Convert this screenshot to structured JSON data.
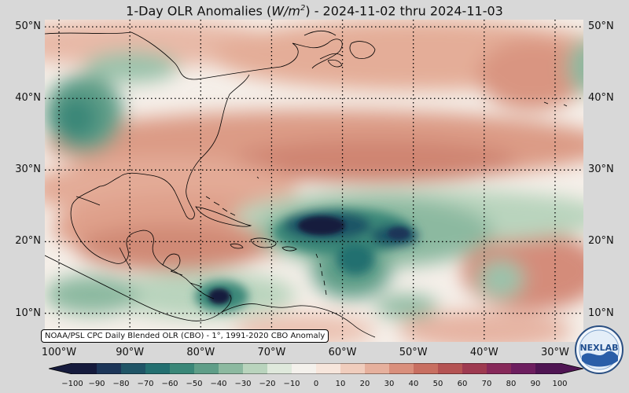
{
  "title": {
    "prefix": "1-Day OLR Anomalies (",
    "units_main": "W/m",
    "units_sup": "2",
    "suffix": ") - 2024-11-02 thru 2024-11-03"
  },
  "credit": "NOAA/PSL CPC Daily Blended OLR (CBO) - 1°, 1991-2020 CBO Anomaly",
  "logo_text": "NEXLAB",
  "map_extent": {
    "lon_min": -102,
    "lon_max": -26,
    "lat_min": 6,
    "lat_max": 51
  },
  "lat_labels": [
    {
      "value": 50,
      "label": "50°N"
    },
    {
      "value": 40,
      "label": "40°N"
    },
    {
      "value": 30,
      "label": "30°N"
    },
    {
      "value": 20,
      "label": "20°N"
    },
    {
      "value": 10,
      "label": "10°N"
    }
  ],
  "lon_labels": [
    {
      "value": -100,
      "label": "100°W"
    },
    {
      "value": -90,
      "label": "90°W"
    },
    {
      "value": -80,
      "label": "80°W"
    },
    {
      "value": -70,
      "label": "70°W"
    },
    {
      "value": -60,
      "label": "60°W"
    },
    {
      "value": -50,
      "label": "50°W"
    },
    {
      "value": -40,
      "label": "40°W"
    },
    {
      "value": -30,
      "label": "30°W"
    }
  ],
  "colorbar": {
    "ticks": [
      "−100",
      "−90",
      "−80",
      "−70",
      "−60",
      "−50",
      "−40",
      "−30",
      "−20",
      "−10",
      "0",
      "10",
      "20",
      "30",
      "40",
      "50",
      "60",
      "70",
      "80",
      "90",
      "100"
    ],
    "colors": [
      "#151a3c",
      "#1c3558",
      "#1f5466",
      "#236f70",
      "#3a8778",
      "#5f9e88",
      "#8cb9a0",
      "#b9d4bd",
      "#dfe9dc",
      "#f4f1ec",
      "#f7e6dc",
      "#f0cdbd",
      "#e6b09d",
      "#d98f7c",
      "#c86f61",
      "#b45353",
      "#9e3a50",
      "#87295a",
      "#6d1e5f",
      "#4f1553"
    ]
  },
  "colors": {
    "background": "#d8d8d8",
    "neutral": "#f5efe9",
    "land_lines": "#000000",
    "grid": "#000000"
  }
}
